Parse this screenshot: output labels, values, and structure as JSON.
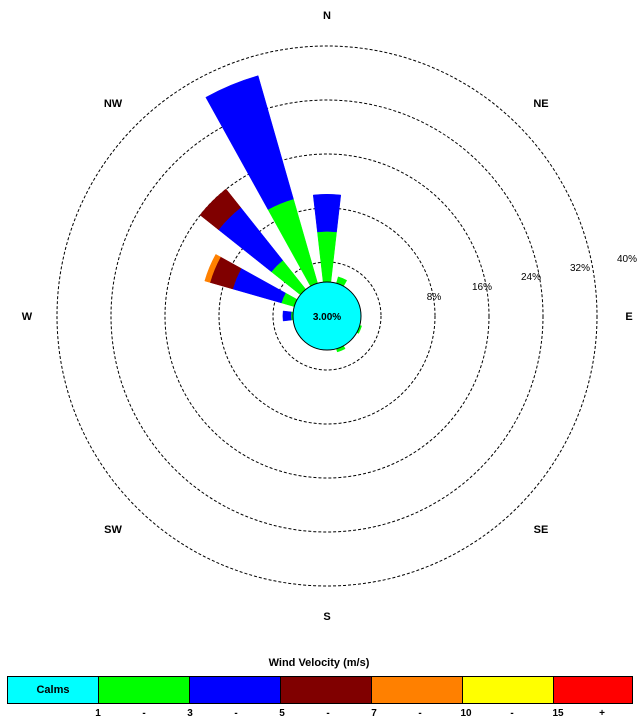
{
  "chart_data": {
    "type": "wind-rose",
    "directions": [
      "N",
      "NE",
      "E",
      "SE",
      "S",
      "SW",
      "W",
      "NW"
    ],
    "ring_labels": [
      "8%",
      "16%",
      "24%",
      "32%",
      "40%"
    ],
    "max_percent": 40,
    "calms": {
      "percent": 3.0,
      "label": "3.00%",
      "color": "#00ffff"
    },
    "legend": {
      "title": "Wind Velocity (m/s)",
      "calms_label": "Calms",
      "bins": [
        {
          "range": "1 - 3",
          "color": "#00ff00"
        },
        {
          "range": "3 - 5",
          "color": "#0000ff"
        },
        {
          "range": "5 - 7",
          "color": "#800000"
        },
        {
          "range": "7 - 10",
          "color": "#ff8000"
        },
        {
          "range": "10 - 15",
          "color": "#ffff00"
        },
        {
          "range": "15 +",
          "color": "#ff0000"
        }
      ],
      "ticks": [
        "1",
        "-",
        "3",
        "-",
        "5",
        "-",
        "7",
        "-",
        "10",
        "-",
        "15",
        "+"
      ]
    },
    "sectors": [
      {
        "bearing": 0,
        "values": [
          7.5,
          5.5,
          0,
          0,
          0,
          0
        ]
      },
      {
        "bearing": 22.5,
        "values": [
          1.0,
          0,
          0,
          0,
          0,
          0
        ]
      },
      {
        "bearing": 112.5,
        "values": [
          0.3,
          0,
          0,
          0,
          0,
          0
        ]
      },
      {
        "bearing": 157.5,
        "values": [
          0.5,
          0,
          0,
          0,
          0,
          0
        ]
      },
      {
        "bearing": 270,
        "values": [
          0.3,
          1.2,
          0,
          0,
          0,
          0
        ]
      },
      {
        "bearing": 292.5,
        "values": [
          2.0,
          7.5,
          3.5,
          0.8,
          0,
          0
        ]
      },
      {
        "bearing": 315,
        "values": [
          5.5,
          10.0,
          3.5,
          0,
          0,
          0
        ]
      },
      {
        "bearing": 337.5,
        "values": [
          13.0,
          19.0,
          0,
          0,
          0,
          0
        ]
      }
    ]
  }
}
